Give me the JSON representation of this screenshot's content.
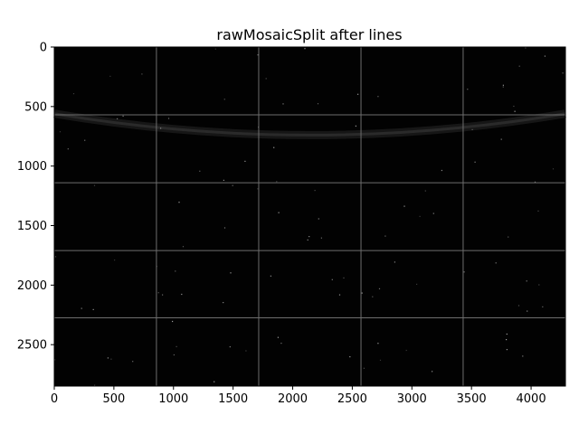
{
  "figure": {
    "title": "rawMosaicSplit after lines"
  },
  "image_panel": {
    "x_range": [
      0,
      4288
    ],
    "y_range": [
      2848,
      0
    ],
    "x_ticks": [
      0,
      500,
      1000,
      1500,
      2000,
      2500,
      3000,
      3500,
      4000
    ],
    "y_ticks": [
      0,
      500,
      1000,
      1500,
      2000,
      2500
    ],
    "x_tick_labels": [
      "0",
      "500",
      "1000",
      "1500",
      "2000",
      "2500",
      "3000",
      "3500",
      "4000"
    ],
    "y_tick_labels": [
      "0",
      "500",
      "1000",
      "1500",
      "2000",
      "2500"
    ],
    "vertical_lines_x": [
      857,
      1715,
      2573,
      3430
    ],
    "horizontal_lines_y": [
      570,
      1140,
      1710,
      2275
    ],
    "arc_endpoints_y": 560,
    "arc_bottom_y": 740,
    "background_color": "#020202",
    "line_color": "#6e6e6e",
    "arc_color": "#2a2a2a"
  }
}
